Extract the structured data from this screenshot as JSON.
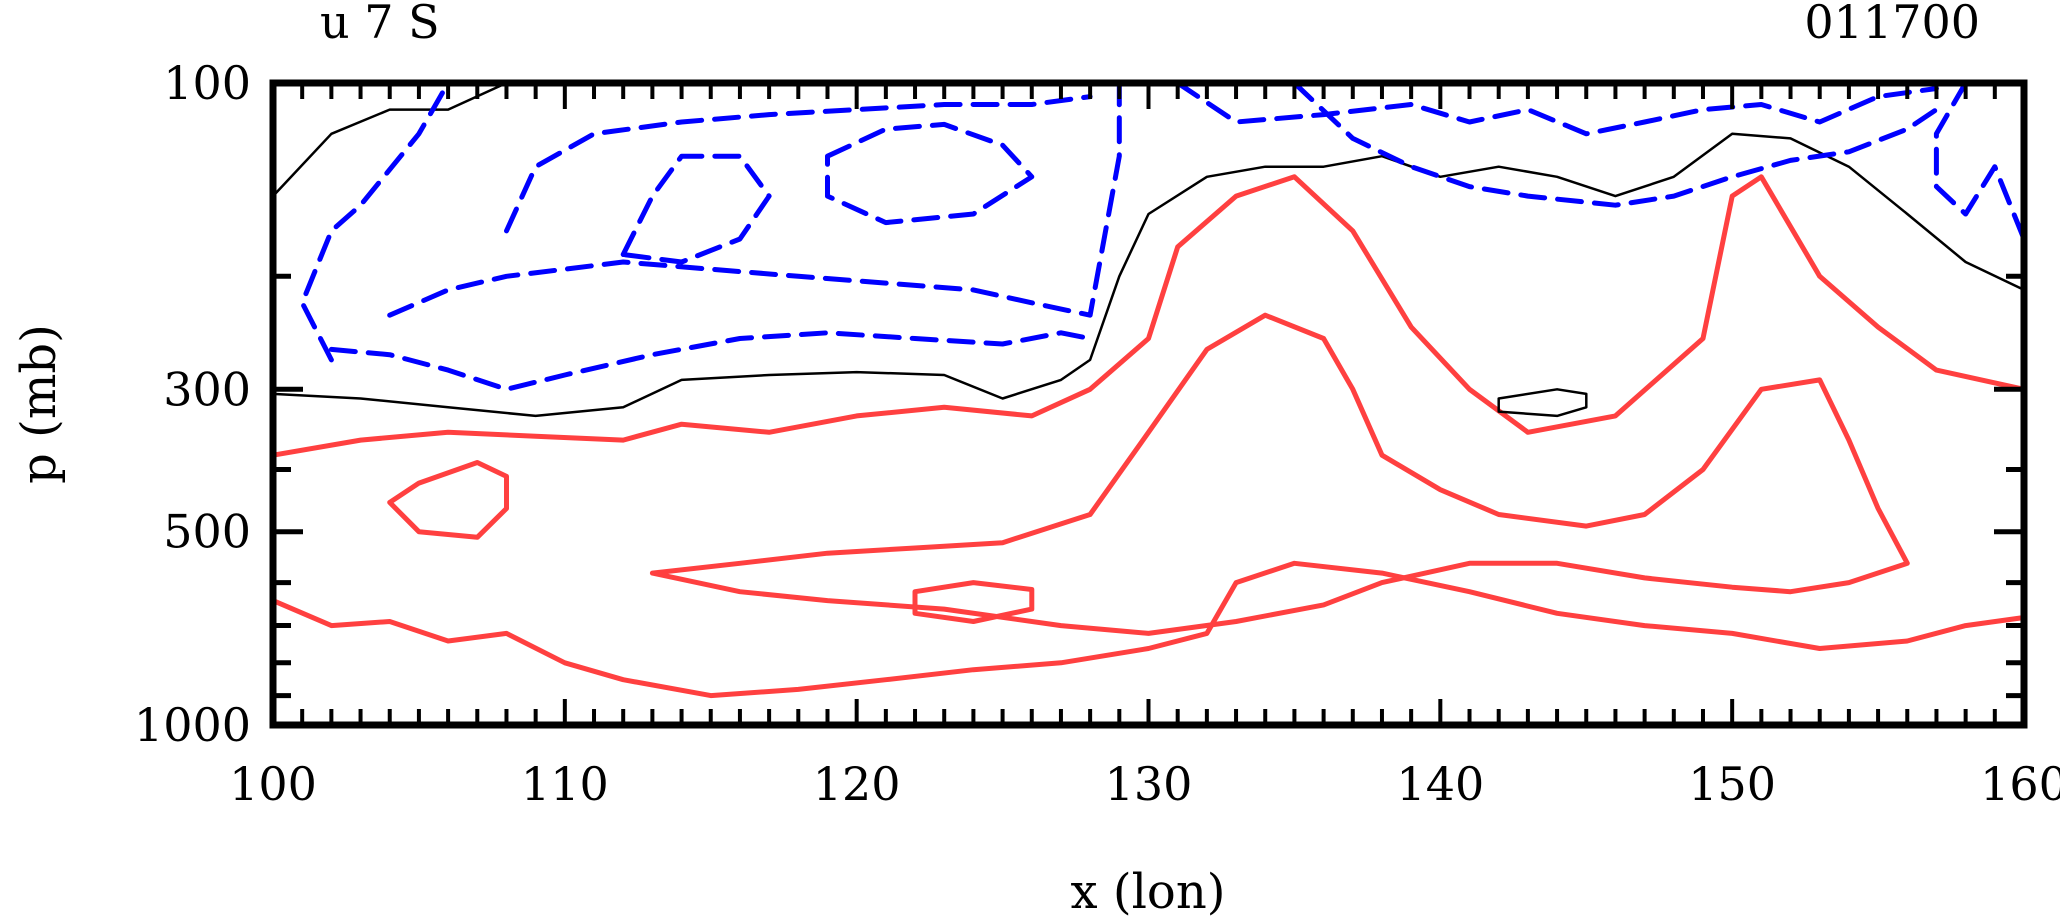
{
  "chart_data": {
    "type": "contour",
    "title_left": "u 7 S",
    "title_right": "011700",
    "xlabel": "x (lon)",
    "ylabel": "p (mb)",
    "xlim": [
      100,
      160
    ],
    "ylim": [
      1000,
      100
    ],
    "yscale": "log",
    "x_ticks": [
      100,
      110,
      120,
      130,
      140,
      150,
      160
    ],
    "y_ticks": [
      100,
      300,
      500,
      1000
    ],
    "colors": {
      "negative": "#0000ff",
      "zero": "#000000",
      "positive": "#ff4040"
    },
    "contours": [
      {
        "kind": "positive",
        "points": [
          [
            100,
            380
          ],
          [
            103,
            360
          ],
          [
            106,
            350
          ],
          [
            109,
            355
          ],
          [
            112,
            360
          ],
          [
            114,
            340
          ],
          [
            117,
            350
          ],
          [
            120,
            330
          ],
          [
            123,
            320
          ],
          [
            126,
            330
          ],
          [
            128,
            300
          ],
          [
            130,
            250
          ],
          [
            131,
            180
          ],
          [
            133,
            150
          ],
          [
            135,
            140
          ],
          [
            137,
            170
          ],
          [
            139,
            240
          ],
          [
            141,
            300
          ],
          [
            143,
            350
          ],
          [
            146,
            330
          ],
          [
            149,
            250
          ],
          [
            150,
            150
          ],
          [
            151,
            140
          ],
          [
            153,
            200
          ],
          [
            155,
            240
          ],
          [
            157,
            280
          ],
          [
            160,
            300
          ]
        ]
      },
      {
        "kind": "positive",
        "points": [
          [
            100,
            640
          ],
          [
            102,
            700
          ],
          [
            104,
            690
          ],
          [
            106,
            740
          ],
          [
            108,
            720
          ],
          [
            110,
            800
          ],
          [
            112,
            850
          ],
          [
            115,
            900
          ],
          [
            118,
            880
          ],
          [
            121,
            850
          ],
          [
            124,
            820
          ],
          [
            127,
            800
          ],
          [
            130,
            760
          ],
          [
            132,
            720
          ],
          [
            133,
            600
          ],
          [
            135,
            560
          ],
          [
            138,
            580
          ],
          [
            141,
            620
          ],
          [
            144,
            670
          ],
          [
            147,
            700
          ],
          [
            150,
            720
          ],
          [
            153,
            760
          ],
          [
            156,
            740
          ],
          [
            158,
            700
          ],
          [
            160,
            680
          ]
        ]
      },
      {
        "kind": "positive",
        "points": [
          [
            113,
            580
          ],
          [
            116,
            560
          ],
          [
            119,
            540
          ],
          [
            122,
            530
          ],
          [
            125,
            520
          ],
          [
            128,
            470
          ],
          [
            130,
            350
          ],
          [
            132,
            260
          ],
          [
            134,
            230
          ],
          [
            136,
            250
          ],
          [
            137,
            300
          ],
          [
            138,
            380
          ],
          [
            140,
            430
          ],
          [
            142,
            470
          ],
          [
            145,
            490
          ],
          [
            147,
            470
          ],
          [
            149,
            400
          ],
          [
            151,
            300
          ],
          [
            153,
            290
          ],
          [
            154,
            360
          ],
          [
            155,
            460
          ],
          [
            156,
            560
          ],
          [
            154,
            600
          ],
          [
            152,
            620
          ],
          [
            150,
            610
          ],
          [
            147,
            590
          ],
          [
            144,
            560
          ],
          [
            141,
            560
          ],
          [
            138,
            600
          ],
          [
            136,
            650
          ],
          [
            133,
            690
          ],
          [
            130,
            720
          ],
          [
            127,
            700
          ],
          [
            123,
            660
          ],
          [
            119,
            640
          ],
          [
            116,
            620
          ],
          [
            113,
            580
          ]
        ]
      },
      {
        "kind": "positive",
        "points": [
          [
            105,
            420
          ],
          [
            107,
            390
          ],
          [
            108,
            410
          ],
          [
            108,
            460
          ],
          [
            107,
            510
          ],
          [
            105,
            500
          ],
          [
            104,
            450
          ],
          [
            105,
            420
          ]
        ]
      },
      {
        "kind": "positive",
        "points": [
          [
            122,
            620
          ],
          [
            124,
            600
          ],
          [
            126,
            615
          ],
          [
            126,
            660
          ],
          [
            124,
            690
          ],
          [
            122,
            670
          ],
          [
            122,
            620
          ]
        ]
      },
      {
        "kind": "zero",
        "points": [
          [
            100,
            150
          ],
          [
            102,
            120
          ],
          [
            104,
            110
          ],
          [
            106,
            110
          ],
          [
            108,
            100
          ]
        ]
      },
      {
        "kind": "zero",
        "points": [
          [
            100,
            305
          ],
          [
            103,
            310
          ],
          [
            106,
            320
          ],
          [
            109,
            330
          ],
          [
            112,
            320
          ],
          [
            114,
            290
          ],
          [
            117,
            285
          ],
          [
            120,
            282
          ],
          [
            123,
            285
          ],
          [
            125,
            310
          ],
          [
            127,
            290
          ],
          [
            128,
            270
          ],
          [
            129,
            200
          ],
          [
            130,
            160
          ],
          [
            132,
            140
          ],
          [
            134,
            135
          ],
          [
            136,
            135
          ],
          [
            138,
            130
          ],
          [
            140,
            140
          ],
          [
            142,
            135
          ],
          [
            144,
            140
          ],
          [
            146,
            150
          ],
          [
            148,
            140
          ],
          [
            150,
            120
          ],
          [
            152,
            122
          ],
          [
            154,
            135
          ],
          [
            156,
            160
          ],
          [
            158,
            190
          ],
          [
            160,
            210
          ]
        ]
      },
      {
        "kind": "zero",
        "points": [
          [
            142,
            310
          ],
          [
            144,
            300
          ],
          [
            145,
            305
          ],
          [
            145,
            320
          ],
          [
            144,
            330
          ],
          [
            142,
            325
          ],
          [
            142,
            310
          ]
        ]
      },
      {
        "kind": "negative",
        "points": [
          [
            102,
            270
          ],
          [
            101,
            220
          ],
          [
            102,
            170
          ],
          [
            103,
            155
          ],
          [
            105,
            120
          ],
          [
            106,
            100
          ]
        ]
      },
      {
        "kind": "negative",
        "points": [
          [
            104,
            230
          ],
          [
            106,
            210
          ],
          [
            108,
            200
          ],
          [
            110,
            195
          ],
          [
            112,
            190
          ],
          [
            115,
            195
          ],
          [
            118,
            200
          ],
          [
            121,
            205
          ],
          [
            124,
            210
          ],
          [
            126,
            220
          ],
          [
            128,
            230
          ],
          [
            129,
            130
          ],
          [
            129,
            100
          ]
        ]
      },
      {
        "kind": "negative",
        "points": [
          [
            102,
            260
          ],
          [
            104,
            265
          ],
          [
            106,
            280
          ],
          [
            108,
            300
          ],
          [
            110,
            285
          ],
          [
            113,
            265
          ],
          [
            116,
            250
          ],
          [
            119,
            245
          ],
          [
            122,
            250
          ],
          [
            125,
            255
          ],
          [
            127,
            245
          ],
          [
            128,
            250
          ]
        ]
      },
      {
        "kind": "negative",
        "points": [
          [
            108,
            170
          ],
          [
            109,
            135
          ],
          [
            111,
            120
          ],
          [
            114,
            115
          ],
          [
            117,
            112
          ],
          [
            120,
            110
          ],
          [
            123,
            108
          ],
          [
            126,
            108
          ],
          [
            128,
            105
          ]
        ]
      },
      {
        "kind": "negative",
        "points": [
          [
            119,
            130
          ],
          [
            121,
            118
          ],
          [
            123,
            116
          ],
          [
            125,
            125
          ],
          [
            126,
            140
          ],
          [
            124,
            160
          ],
          [
            121,
            165
          ],
          [
            119,
            150
          ],
          [
            119,
            130
          ]
        ]
      },
      {
        "kind": "negative",
        "points": [
          [
            112,
            185
          ],
          [
            113,
            150
          ],
          [
            114,
            130
          ],
          [
            116,
            130
          ],
          [
            117,
            150
          ],
          [
            116,
            175
          ],
          [
            114,
            190
          ],
          [
            112,
            185
          ]
        ]
      },
      {
        "kind": "negative",
        "points": [
          [
            131,
            100
          ],
          [
            133,
            115
          ],
          [
            136,
            112
          ],
          [
            139,
            108
          ],
          [
            141,
            115
          ],
          [
            143,
            110
          ],
          [
            145,
            120
          ],
          [
            147,
            115
          ],
          [
            149,
            110
          ],
          [
            151,
            108
          ],
          [
            153,
            115
          ],
          [
            155,
            105
          ],
          [
            157,
            102
          ]
        ]
      },
      {
        "kind": "negative",
        "points": [
          [
            135,
            100
          ],
          [
            137,
            122
          ],
          [
            139,
            135
          ],
          [
            141,
            145
          ],
          [
            143,
            150
          ],
          [
            146,
            155
          ],
          [
            148,
            150
          ],
          [
            150,
            140
          ],
          [
            152,
            132
          ],
          [
            154,
            128
          ],
          [
            156,
            118
          ],
          [
            157,
            110
          ]
        ]
      },
      {
        "kind": "negative",
        "points": [
          [
            158,
            100
          ],
          [
            157,
            120
          ],
          [
            157,
            145
          ],
          [
            158,
            160
          ],
          [
            159,
            135
          ],
          [
            160,
            175
          ]
        ]
      }
    ]
  }
}
